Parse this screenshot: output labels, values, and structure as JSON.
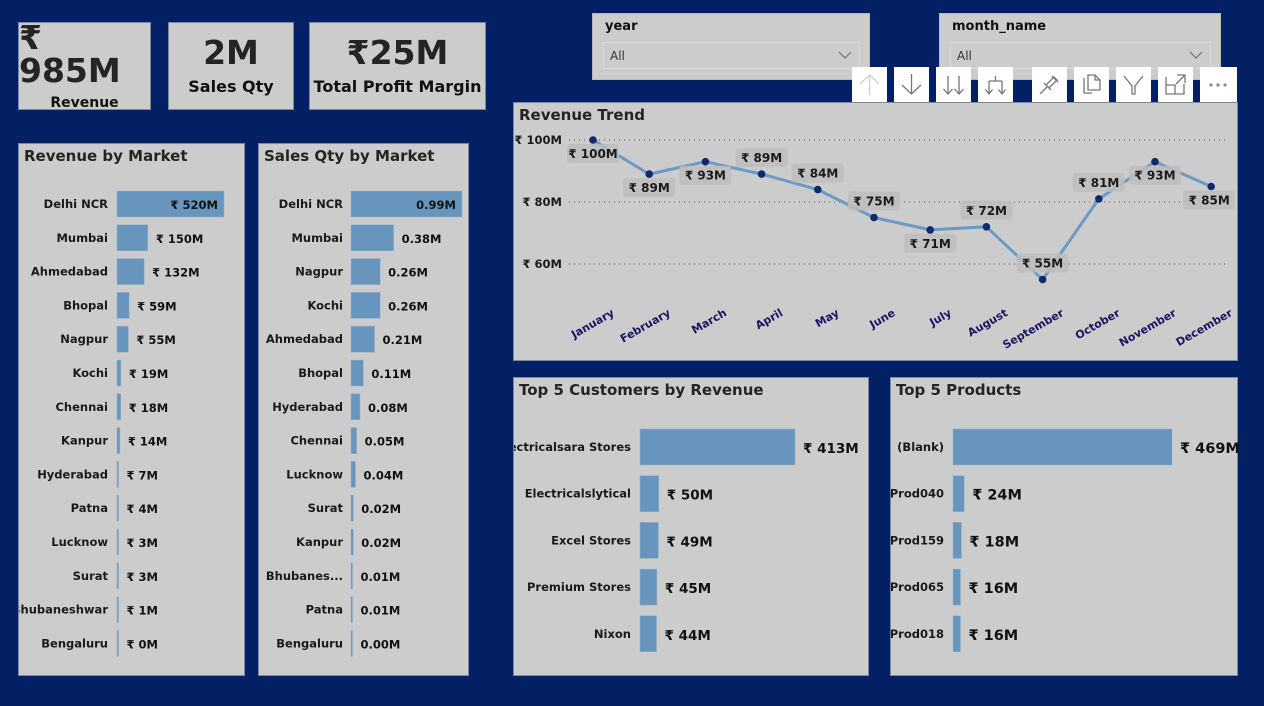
{
  "kpis": [
    {
      "value": "₹ 985M",
      "label": "Revenue"
    },
    {
      "value": "2M",
      "label": "Sales Qty"
    },
    {
      "value": "₹25M",
      "label": "Total Profit Margin"
    }
  ],
  "slicers": [
    {
      "title": "year",
      "selected": "All"
    },
    {
      "title": "month_name",
      "selected": "All"
    }
  ],
  "toolbar": {
    "buttons": [
      {
        "name": "drill-up",
        "icon": "arrow-up-icon"
      },
      {
        "name": "drill-down",
        "icon": "arrow-down-icon"
      },
      {
        "name": "go-to-next-level",
        "icon": "double-arrow-down-icon"
      },
      {
        "name": "expand-next-level",
        "icon": "fork-arrow-down-icon"
      },
      {
        "name": "pin-visual",
        "icon": "pin-icon"
      },
      {
        "name": "copy-visual",
        "icon": "copy-icon"
      },
      {
        "name": "filter",
        "icon": "filter-icon"
      },
      {
        "name": "focus-mode",
        "icon": "focus-mode-icon"
      },
      {
        "name": "more-options",
        "icon": "ellipsis-icon"
      }
    ]
  },
  "colors": {
    "background": "#042065",
    "card": "#cccccc",
    "bar": "#6895bd",
    "line": "#6b9ac4",
    "point": "#0d2a6b",
    "axis_label": "#1b1464",
    "label_bg": "#bdbdbd"
  },
  "chart_data": [
    {
      "id": "revenue-by-market",
      "type": "bar",
      "orientation": "horizontal",
      "title": "Revenue by Market",
      "categories": [
        "Delhi NCR",
        "Mumbai",
        "Ahmedabad",
        "Bhopal",
        "Nagpur",
        "Kochi",
        "Chennai",
        "Kanpur",
        "Hyderabad",
        "Patna",
        "Lucknow",
        "Surat",
        "Bhubaneshwar",
        "Bengaluru"
      ],
      "values": [
        520,
        150,
        132,
        59,
        55,
        19,
        18,
        14,
        7,
        4,
        3,
        3,
        1,
        0
      ],
      "labels": [
        "₹ 520M",
        "₹ 150M",
        "₹ 132M",
        "₹ 59M",
        "₹ 55M",
        "₹ 19M",
        "₹ 18M",
        "₹ 14M",
        "₹ 7M",
        "₹ 4M",
        "₹ 3M",
        "₹ 3M",
        "₹ 1M",
        "₹ 0M"
      ],
      "unit": "₹ M"
    },
    {
      "id": "sales-qty-by-market",
      "type": "bar",
      "orientation": "horizontal",
      "title": "Sales Qty by Market",
      "categories": [
        "Delhi NCR",
        "Mumbai",
        "Nagpur",
        "Kochi",
        "Ahmedabad",
        "Bhopal",
        "Hyderabad",
        "Chennai",
        "Lucknow",
        "Surat",
        "Kanpur",
        "Bhubanes...",
        "Patna",
        "Bengaluru"
      ],
      "values": [
        0.99,
        0.38,
        0.26,
        0.26,
        0.21,
        0.11,
        0.08,
        0.05,
        0.04,
        0.02,
        0.02,
        0.01,
        0.01,
        0.0
      ],
      "labels": [
        "0.99M",
        "0.38M",
        "0.26M",
        "0.26M",
        "0.21M",
        "0.11M",
        "0.08M",
        "0.05M",
        "0.04M",
        "0.02M",
        "0.02M",
        "0.01M",
        "0.01M",
        "0.00M"
      ],
      "unit": "M"
    },
    {
      "id": "revenue-trend",
      "type": "line",
      "title": "Revenue Trend",
      "categories": [
        "January",
        "February",
        "March",
        "April",
        "May",
        "June",
        "July",
        "August",
        "September",
        "October",
        "November",
        "December"
      ],
      "values": [
        100,
        89,
        93,
        89,
        84,
        75,
        71,
        72,
        55,
        81,
        93,
        85
      ],
      "labels": [
        "₹ 100M",
        "₹ 89M",
        "₹ 93M",
        "₹ 89M",
        "₹ 84M",
        "₹ 75M",
        "₹ 71M",
        "₹ 72M",
        "₹ 55M",
        "₹ 81M",
        "₹ 93M",
        "₹ 85M"
      ],
      "label_positions": [
        "below",
        "below",
        "below",
        "above",
        "above",
        "above",
        "below",
        "above",
        "above",
        "above",
        "below",
        "below"
      ],
      "yticks": [
        100,
        80,
        60
      ],
      "ytick_labels": [
        "₹ 100M",
        "₹ 80M",
        "₹ 60M"
      ],
      "ylim": [
        46,
        103
      ],
      "grid": true,
      "unit": "₹ M"
    },
    {
      "id": "top5-customers",
      "type": "bar",
      "orientation": "horizontal",
      "title": "Top 5 Customers by Revenue",
      "categories": [
        "Electricalsara Stores",
        "Electricalslytical",
        "Excel Stores",
        "Premium Stores",
        "Nixon"
      ],
      "values": [
        413,
        50,
        49,
        45,
        44
      ],
      "labels": [
        "₹ 413M",
        "₹ 50M",
        "₹ 49M",
        "₹ 45M",
        "₹ 44M"
      ],
      "unit": "₹ M"
    },
    {
      "id": "top5-products",
      "type": "bar",
      "orientation": "horizontal",
      "title": "Top 5 Products",
      "categories": [
        "(Blank)",
        "Prod040",
        "Prod159",
        "Prod065",
        "Prod018"
      ],
      "values": [
        469,
        24,
        18,
        16,
        16
      ],
      "labels": [
        "₹ 469M",
        "₹ 24M",
        "₹ 18M",
        "₹ 16M",
        "₹ 16M"
      ],
      "unit": "₹ M"
    }
  ]
}
